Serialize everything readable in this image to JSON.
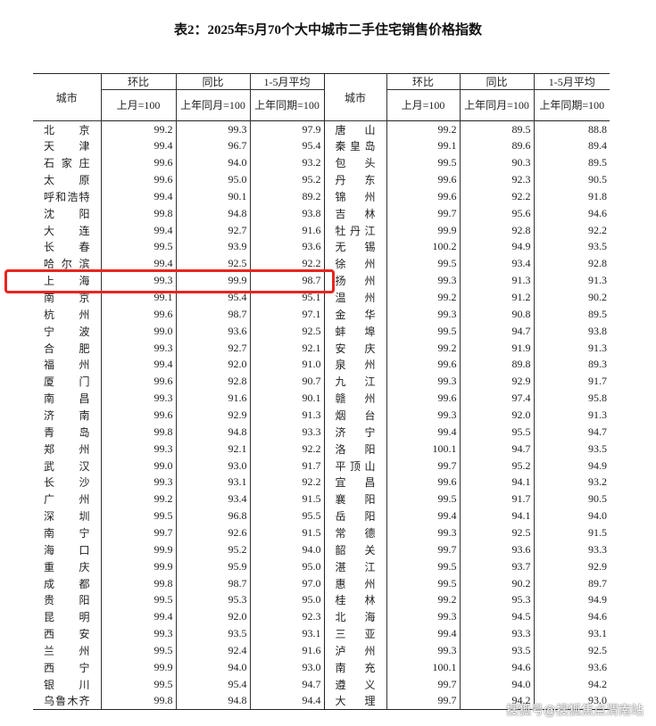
{
  "title": "表2：2025年5月70个大中城市二手住宅销售价格指数",
  "table": {
    "city_label": "城市",
    "header_top": [
      "环比",
      "同比",
      "1-5月平均"
    ],
    "header_sub": [
      "上月=100",
      "上年同月=100",
      "上年同期=100"
    ],
    "rows": [
      [
        "北京",
        "99.2",
        "99.3",
        "97.9",
        "唐山",
        "99.2",
        "89.5",
        "88.8"
      ],
      [
        "天津",
        "99.4",
        "96.7",
        "95.4",
        "秦皇岛",
        "99.1",
        "89.6",
        "89.4"
      ],
      [
        "石家庄",
        "99.6",
        "94.0",
        "93.2",
        "包头",
        "99.5",
        "90.3",
        "89.5"
      ],
      [
        "太原",
        "99.6",
        "95.0",
        "95.2",
        "丹东",
        "99.6",
        "92.3",
        "90.5"
      ],
      [
        "呼和浩特",
        "99.4",
        "90.1",
        "89.2",
        "锦州",
        "99.6",
        "92.2",
        "91.8"
      ],
      [
        "沈阳",
        "99.8",
        "94.8",
        "93.8",
        "吉林",
        "99.7",
        "95.6",
        "94.6"
      ],
      [
        "大连",
        "99.4",
        "92.7",
        "91.6",
        "牡丹江",
        "99.9",
        "92.8",
        "92.2"
      ],
      [
        "长春",
        "99.5",
        "93.9",
        "93.6",
        "无锡",
        "100.2",
        "94.9",
        "93.5"
      ],
      [
        "哈尔滨",
        "99.4",
        "92.5",
        "92.2",
        "徐州",
        "99.5",
        "93.4",
        "92.8"
      ],
      [
        "上海",
        "99.3",
        "99.9",
        "98.7",
        "扬州",
        "99.3",
        "91.3",
        "91.3"
      ],
      [
        "南京",
        "99.1",
        "95.4",
        "95.1",
        "温州",
        "99.2",
        "91.2",
        "90.2"
      ],
      [
        "杭州",
        "99.6",
        "98.7",
        "97.1",
        "金华",
        "99.3",
        "90.8",
        "89.5"
      ],
      [
        "宁波",
        "99.0",
        "93.6",
        "92.5",
        "蚌埠",
        "99.5",
        "94.7",
        "93.8"
      ],
      [
        "合肥",
        "99.3",
        "92.7",
        "92.1",
        "安庆",
        "99.2",
        "91.9",
        "91.3"
      ],
      [
        "福州",
        "99.4",
        "92.0",
        "91.0",
        "泉州",
        "99.6",
        "89.8",
        "89.3"
      ],
      [
        "厦门",
        "99.6",
        "92.8",
        "90.7",
        "九江",
        "99.3",
        "92.9",
        "91.7"
      ],
      [
        "南昌",
        "99.3",
        "91.6",
        "90.1",
        "赣州",
        "99.6",
        "97.4",
        "95.8"
      ],
      [
        "济南",
        "99.6",
        "92.9",
        "91.3",
        "烟台",
        "99.3",
        "92.0",
        "91.3"
      ],
      [
        "青岛",
        "99.8",
        "94.8",
        "93.3",
        "济宁",
        "99.4",
        "95.5",
        "94.7"
      ],
      [
        "郑州",
        "99.3",
        "92.1",
        "92.2",
        "洛阳",
        "100.1",
        "94.7",
        "93.5"
      ],
      [
        "武汉",
        "99.0",
        "93.0",
        "91.7",
        "平顶山",
        "99.7",
        "95.2",
        "94.9"
      ],
      [
        "长沙",
        "99.3",
        "93.1",
        "92.2",
        "宜昌",
        "99.6",
        "94.1",
        "93.2"
      ],
      [
        "广州",
        "99.2",
        "93.4",
        "91.5",
        "襄阳",
        "99.5",
        "91.7",
        "90.5"
      ],
      [
        "深圳",
        "99.5",
        "96.8",
        "95.5",
        "岳阳",
        "99.4",
        "94.1",
        "94.0"
      ],
      [
        "南宁",
        "99.7",
        "92.6",
        "91.5",
        "常德",
        "99.3",
        "92.5",
        "91.5"
      ],
      [
        "海口",
        "99.9",
        "95.2",
        "94.0",
        "韶关",
        "99.7",
        "93.6",
        "93.3"
      ],
      [
        "重庆",
        "99.9",
        "95.9",
        "95.0",
        "湛江",
        "99.5",
        "93.7",
        "92.9"
      ],
      [
        "成都",
        "99.8",
        "98.7",
        "97.0",
        "惠州",
        "99.5",
        "90.2",
        "89.7"
      ],
      [
        "贵阳",
        "99.5",
        "95.3",
        "95.0",
        "桂林",
        "99.2",
        "95.3",
        "94.9"
      ],
      [
        "昆明",
        "99.4",
        "92.0",
        "92.3",
        "北海",
        "99.3",
        "94.5",
        "94.6"
      ],
      [
        "西安",
        "99.3",
        "93.5",
        "93.1",
        "三亚",
        "99.4",
        "93.3",
        "93.1"
      ],
      [
        "兰州",
        "99.5",
        "92.4",
        "91.6",
        "泸州",
        "99.3",
        "93.5",
        "92.5"
      ],
      [
        "西宁",
        "99.9",
        "94.0",
        "93.0",
        "南充",
        "100.1",
        "94.6",
        "93.6"
      ],
      [
        "银川",
        "99.5",
        "95.4",
        "94.7",
        "遵义",
        "99.7",
        "94.0",
        "94.2"
      ],
      [
        "乌鲁木齐",
        "99.8",
        "94.8",
        "94.4",
        "大理",
        "99.7",
        "94.2",
        "93.0"
      ]
    ]
  },
  "watermark": "搜狐号@搜狐焦点渭南站"
}
